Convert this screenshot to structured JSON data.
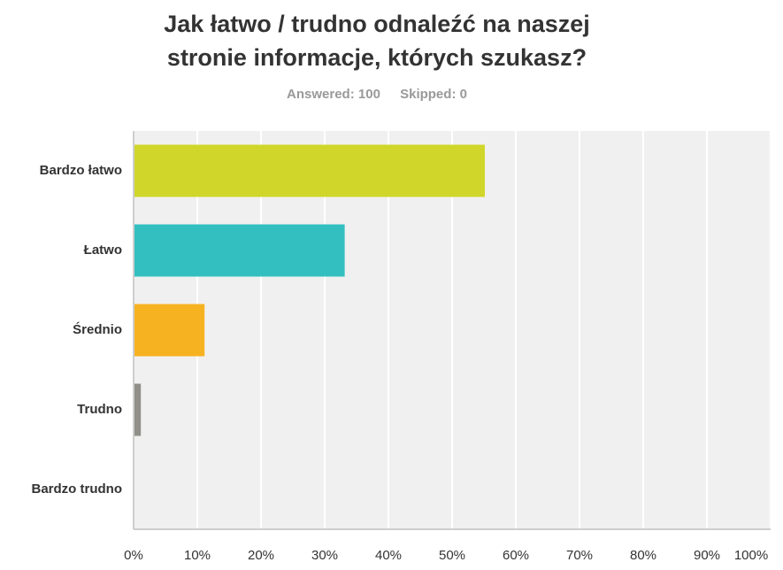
{
  "title_lines": [
    "Jak łatwo / trudno odnaleźć na naszej",
    "stronie informacje, których szukasz?"
  ],
  "meta": {
    "answered": "Answered: 100",
    "skipped": "Skipped: 0"
  },
  "colors": {
    "plot_background": "#f0f0f0",
    "gridline": "#ffffff",
    "axis": "#bfbfbf"
  },
  "chart_data": {
    "type": "bar",
    "orientation": "horizontal",
    "title": "Jak łatwo / trudno odnaleźć na naszej stronie informacje, których szukasz?",
    "categories": [
      "Bardzo łatwo",
      "Łatwo",
      "Średnio",
      "Trudno",
      "Bardzo trudno"
    ],
    "values": [
      55,
      33,
      11,
      1,
      0
    ],
    "bar_colors": [
      "#d0d62a",
      "#33bfc0",
      "#f7b221",
      "#909088",
      "#cccccc"
    ],
    "xlim": [
      0,
      100
    ],
    "x_ticks": [
      0,
      10,
      20,
      30,
      40,
      50,
      60,
      70,
      80,
      90,
      100
    ],
    "x_tick_labels": [
      "0%",
      "10%",
      "20%",
      "30%",
      "40%",
      "50%",
      "60%",
      "70%",
      "80%",
      "90%",
      "100%"
    ],
    "grid": true,
    "legend": "none"
  }
}
